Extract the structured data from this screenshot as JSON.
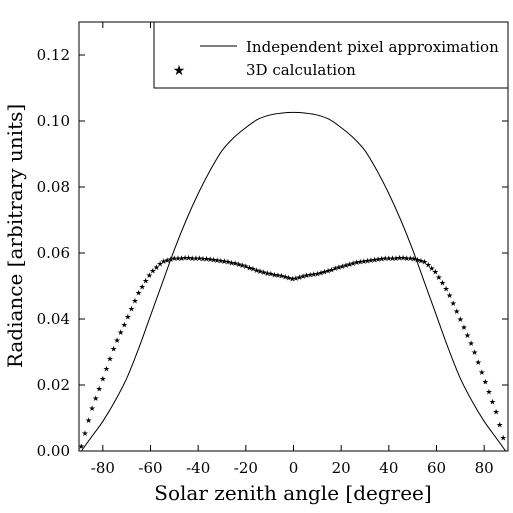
{
  "chart_data": {
    "type": "line",
    "xlabel": "Solar zenith angle [degree]",
    "ylabel": "Radiance [arbitrary units]",
    "xlim": [
      -90,
      90
    ],
    "ylim": [
      0,
      0.13
    ],
    "xticks": [
      -80,
      -60,
      -40,
      -20,
      0,
      20,
      40,
      60,
      80
    ],
    "xtick_labels": [
      "-80",
      "-60",
      "-40",
      "-20",
      "0",
      "20",
      "40",
      "60",
      "80"
    ],
    "yticks": [
      0.0,
      0.02,
      0.04,
      0.06,
      0.08,
      0.1,
      0.12
    ],
    "ytick_labels": [
      "0.00",
      "0.02",
      "0.04",
      "0.06",
      "0.08",
      "0.10",
      "0.12"
    ],
    "legend_position": "top-right",
    "series": [
      {
        "name": "Independent pixel approximation",
        "style": "line",
        "color": "#000000",
        "x": [
          -89,
          -85,
          -80,
          -75,
          -70,
          -65,
          -60,
          -55,
          -50,
          -45,
          -40,
          -35,
          -30,
          -25,
          -20,
          -15,
          -10,
          -5,
          0,
          5,
          10,
          15,
          20,
          25,
          30,
          35,
          40,
          45,
          50,
          55,
          60,
          65,
          70,
          75,
          80,
          85,
          89
        ],
        "y": [
          0.0,
          0.004,
          0.009,
          0.015,
          0.022,
          0.031,
          0.041,
          0.051,
          0.061,
          0.07,
          0.078,
          0.085,
          0.091,
          0.095,
          0.098,
          0.1005,
          0.1018,
          0.1024,
          0.1026,
          0.1024,
          0.1018,
          0.1005,
          0.098,
          0.095,
          0.091,
          0.085,
          0.078,
          0.07,
          0.061,
          0.051,
          0.041,
          0.031,
          0.022,
          0.015,
          0.009,
          0.004,
          0.0
        ]
      },
      {
        "name": "3D calculation",
        "style": "star-markers",
        "color": "#000000",
        "x": [
          -89,
          -85,
          -80,
          -75,
          -70,
          -65,
          -60,
          -55,
          -50,
          -45,
          -40,
          -35,
          -30,
          -25,
          -20,
          -15,
          -10,
          -5,
          0,
          5,
          10,
          15,
          20,
          25,
          30,
          35,
          40,
          45,
          50,
          55,
          60,
          65,
          70,
          75,
          80,
          85,
          89
        ],
        "y": [
          0.0015,
          0.012,
          0.022,
          0.032,
          0.04,
          0.048,
          0.054,
          0.0575,
          0.0585,
          0.0586,
          0.0585,
          0.0582,
          0.0577,
          0.057,
          0.056,
          0.0548,
          0.0538,
          0.0532,
          0.0522,
          0.0532,
          0.0538,
          0.0548,
          0.056,
          0.057,
          0.0577,
          0.0582,
          0.0585,
          0.0586,
          0.0585,
          0.0575,
          0.054,
          0.048,
          0.04,
          0.032,
          0.022,
          0.012,
          0.0015
        ]
      }
    ]
  }
}
